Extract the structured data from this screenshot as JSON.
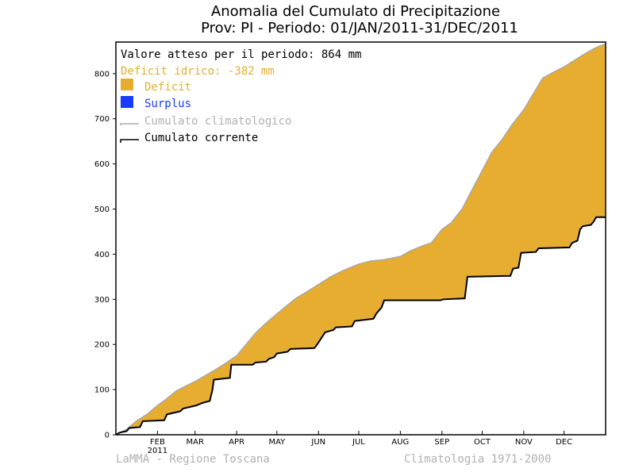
{
  "chart_data": {
    "type": "area",
    "title_line1": "Anomalia del Cumulato di Precipitazione",
    "title_line2": "Prov: PI - Periodo: 01/JAN/2011-31/DEC/2011",
    "ylim": [
      0,
      870
    ],
    "xlim": [
      0,
      365
    ],
    "y_ticks": [
      0,
      100,
      200,
      300,
      400,
      500,
      600,
      700,
      800
    ],
    "x_ticks": [
      {
        "day": 31,
        "label": "FEB"
      },
      {
        "day": 59,
        "label": "MAR"
      },
      {
        "day": 90,
        "label": "APR"
      },
      {
        "day": 120,
        "label": "MAY"
      },
      {
        "day": 151,
        "label": "JUN"
      },
      {
        "day": 181,
        "label": "JUL"
      },
      {
        "day": 212,
        "label": "AUG"
      },
      {
        "day": 243,
        "label": "SEP"
      },
      {
        "day": 273,
        "label": "OCT"
      },
      {
        "day": 304,
        "label": "NOV"
      },
      {
        "day": 334,
        "label": "DEC"
      }
    ],
    "year_label": "2011",
    "legend": {
      "expected_text": "Valore atteso per il periodo: 864 mm",
      "deficit_text": "Deficit idrico: -382 mm",
      "items": [
        {
          "label": "Deficit",
          "color": "#e6ad30",
          "kind": "box"
        },
        {
          "label": "Surplus",
          "color": "#1a3cff",
          "kind": "box"
        },
        {
          "label": "Cumulato climatologico",
          "color": "#a8a8a8",
          "kind": "line"
        },
        {
          "label": "Cumulato corrente",
          "color": "#000000",
          "kind": "line"
        }
      ]
    },
    "colors": {
      "deficit": "#e6ad30",
      "surplus": "#1a3cff",
      "climatological": "#a8a8a8",
      "current": "#000000",
      "deficit_text": "#e6ad30"
    },
    "series": [
      {
        "name": "Cumulato climatologico",
        "points": [
          [
            0,
            0
          ],
          [
            8,
            12
          ],
          [
            15,
            30
          ],
          [
            23,
            45
          ],
          [
            31,
            65
          ],
          [
            38,
            80
          ],
          [
            45,
            97
          ],
          [
            52,
            108
          ],
          [
            59,
            118
          ],
          [
            66,
            130
          ],
          [
            73,
            142
          ],
          [
            80,
            155
          ],
          [
            90,
            175
          ],
          [
            97,
            200
          ],
          [
            104,
            225
          ],
          [
            111,
            245
          ],
          [
            120,
            268
          ],
          [
            127,
            285
          ],
          [
            134,
            302
          ],
          [
            143,
            318
          ],
          [
            151,
            333
          ],
          [
            160,
            350
          ],
          [
            168,
            362
          ],
          [
            176,
            372
          ],
          [
            181,
            378
          ],
          [
            190,
            385
          ],
          [
            200,
            388
          ],
          [
            212,
            395
          ],
          [
            220,
            408
          ],
          [
            228,
            418
          ],
          [
            235,
            425
          ],
          [
            243,
            455
          ],
          [
            250,
            470
          ],
          [
            258,
            500
          ],
          [
            265,
            540
          ],
          [
            273,
            585
          ],
          [
            280,
            625
          ],
          [
            288,
            655
          ],
          [
            296,
            690
          ],
          [
            304,
            720
          ],
          [
            312,
            760
          ],
          [
            318,
            790
          ],
          [
            326,
            803
          ],
          [
            334,
            815
          ],
          [
            342,
            830
          ],
          [
            350,
            845
          ],
          [
            358,
            858
          ],
          [
            365,
            866
          ]
        ]
      },
      {
        "name": "Cumulato corrente",
        "points": [
          [
            0,
            0
          ],
          [
            3,
            5
          ],
          [
            8,
            8
          ],
          [
            10,
            15
          ],
          [
            18,
            17
          ],
          [
            20,
            30
          ],
          [
            36,
            32
          ],
          [
            38,
            45
          ],
          [
            48,
            52
          ],
          [
            50,
            58
          ],
          [
            60,
            65
          ],
          [
            64,
            70
          ],
          [
            70,
            75
          ],
          [
            72,
            100
          ],
          [
            73,
            122
          ],
          [
            85,
            126
          ],
          [
            86,
            155
          ],
          [
            102,
            155
          ],
          [
            104,
            160
          ],
          [
            112,
            162
          ],
          [
            114,
            168
          ],
          [
            118,
            172
          ],
          [
            120,
            180
          ],
          [
            128,
            184
          ],
          [
            130,
            190
          ],
          [
            148,
            192
          ],
          [
            150,
            200
          ],
          [
            154,
            218
          ],
          [
            156,
            227
          ],
          [
            162,
            232
          ],
          [
            164,
            238
          ],
          [
            176,
            240
          ],
          [
            178,
            252
          ],
          [
            192,
            257
          ],
          [
            194,
            268
          ],
          [
            198,
            282
          ],
          [
            200,
            298
          ],
          [
            242,
            298
          ],
          [
            244,
            300
          ],
          [
            260,
            302
          ],
          [
            262,
            350
          ],
          [
            294,
            352
          ],
          [
            296,
            368
          ],
          [
            300,
            370
          ],
          [
            302,
            403
          ],
          [
            313,
            405
          ],
          [
            315,
            413
          ],
          [
            338,
            415
          ],
          [
            340,
            425
          ],
          [
            344,
            430
          ],
          [
            346,
            455
          ],
          [
            348,
            462
          ],
          [
            354,
            465
          ],
          [
            356,
            472
          ],
          [
            358,
            482
          ],
          [
            365,
            482
          ]
        ]
      }
    ],
    "footer_left": "LaMMA - Regione Toscana",
    "footer_right": "Climatologia 1971-2000"
  }
}
